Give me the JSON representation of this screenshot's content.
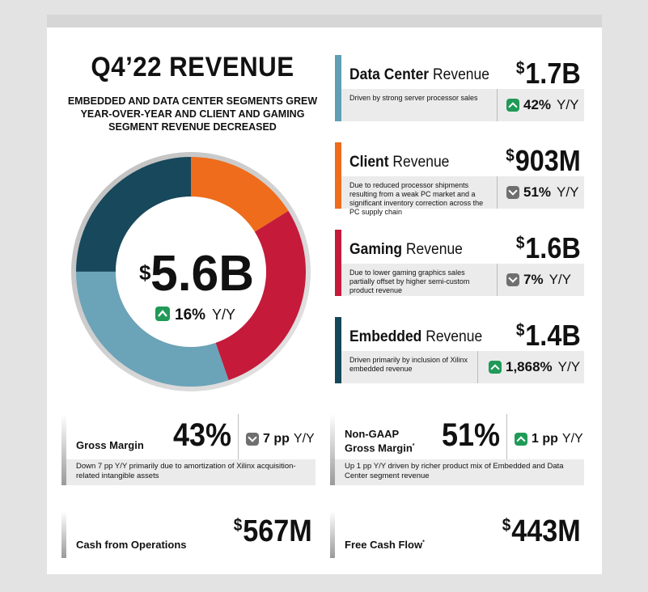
{
  "title": "Q4’22 REVENUE",
  "subtitle": "EMBEDDED AND DATA CENTER SEGMENTS GREW YEAR-OVER-YEAR AND CLIENT AND GAMING SEGMENT REVENUE DECREASED",
  "total": {
    "currency": "$",
    "value": "5.6B",
    "change": "16%",
    "change_suffix": "Y/Y",
    "direction": "up"
  },
  "segments": [
    {
      "name_bold": "Data Center",
      "name_rest": " Revenue",
      "currency": "$",
      "value": "1.7B",
      "desc": "Driven by strong server processor sales",
      "change": "42%",
      "change_suffix": "Y/Y",
      "direction": "up",
      "color": "#5f9fb3"
    },
    {
      "name_bold": "Client",
      "name_rest": " Revenue",
      "currency": "$",
      "value": "903M",
      "desc": "Due to reduced processor shipments resulting from a weak PC market and a significant inventory correction across the PC supply chain",
      "change": "51%",
      "change_suffix": "Y/Y",
      "direction": "down",
      "color": "#ee6c1b"
    },
    {
      "name_bold": "Gaming",
      "name_rest": " Revenue",
      "currency": "$",
      "value": "1.6B",
      "desc": "Due to lower gaming graphics sales partially offset by higher semi-custom product revenue",
      "change": "7%",
      "change_suffix": "Y/Y",
      "direction": "down",
      "color": "#c51a3a"
    },
    {
      "name_bold": "Embedded",
      "name_rest": " Revenue",
      "currency": "$",
      "value": "1.4B",
      "desc": "Driven primarily by inclusion of Xilinx embedded revenue",
      "change": "1,868%",
      "change_suffix": "Y/Y",
      "direction": "up",
      "color": "#14475a"
    }
  ],
  "gross_margin": {
    "label": "Gross Margin",
    "value": "43%",
    "change": "7 pp",
    "change_suffix": "Y/Y",
    "direction": "down",
    "desc": "Down 7 pp Y/Y primarily due to amortization of Xilinx acquisition-related intangible assets"
  },
  "non_gaap_margin": {
    "label_line1": "Non-GAAP",
    "label_line2": "Gross Margin",
    "asterisk": "*",
    "value": "51%",
    "change": "1 pp",
    "change_suffix": "Y/Y",
    "direction": "up",
    "desc": "Up 1 pp Y/Y driven by richer product mix of Embedded and Data Center segment revenue"
  },
  "cash_ops": {
    "label": "Cash from Operations",
    "currency": "$",
    "value": "567M"
  },
  "fcf": {
    "label": "Free Cash Flow",
    "asterisk": "*",
    "currency": "$",
    "value": "443M"
  },
  "chart_data": {
    "type": "pie",
    "categories": [
      "Client",
      "Gaming",
      "Data Center",
      "Embedded"
    ],
    "values": [
      0.903,
      1.6,
      1.7,
      1.4
    ],
    "colors": [
      "#ee6c1b",
      "#c51a3a",
      "#6ba3b8",
      "#17485c"
    ]
  }
}
